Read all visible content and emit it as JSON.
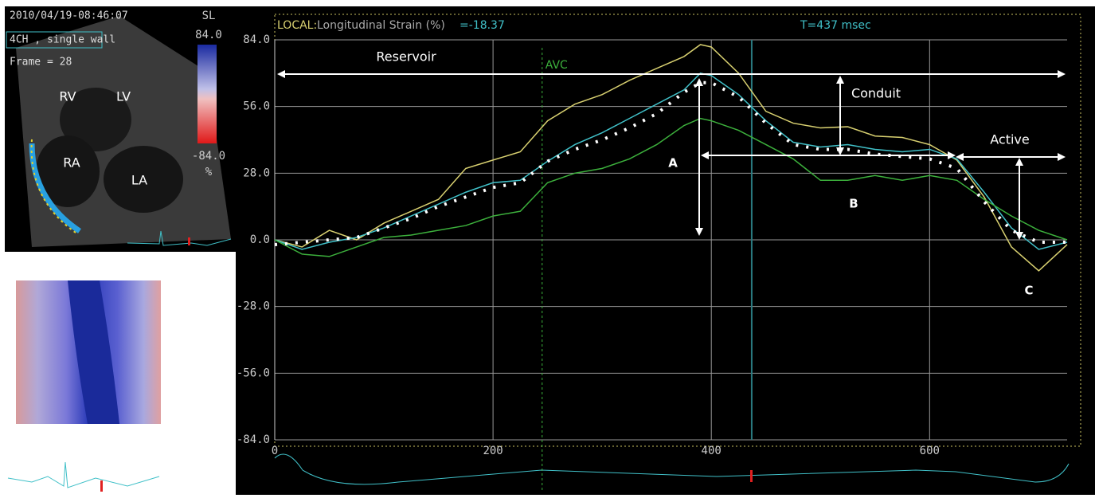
{
  "chart_data": {
    "type": "line",
    "header": {
      "local": "LOCAL:",
      "measure": "Longitudinal Strain (%)",
      "value": "=-18.37"
    },
    "cursor": {
      "label": "T=437 msec",
      "x": 437
    },
    "avc": {
      "label": "AVC",
      "x": 245
    },
    "x": [
      0,
      25,
      50,
      75,
      100,
      125,
      150,
      175,
      200,
      225,
      250,
      275,
      300,
      325,
      350,
      375,
      390,
      400,
      425,
      450,
      475,
      500,
      525,
      550,
      575,
      600,
      625,
      650,
      675,
      700,
      726
    ],
    "series": [
      {
        "color": "#d8d070",
        "values": [
          0,
          -3,
          4,
          0,
          7,
          12,
          17,
          30,
          33.5,
          37,
          50,
          57,
          61,
          67,
          72,
          77,
          82,
          81,
          70,
          54,
          49,
          47,
          47.5,
          43.6,
          43,
          40,
          33.5,
          18,
          -3,
          -13,
          -2
        ]
      },
      {
        "color": "#40c0c8",
        "values": [
          0,
          -4,
          -1,
          1,
          5,
          10,
          15,
          20,
          24,
          25,
          33,
          40,
          45,
          51,
          57,
          63,
          70,
          69,
          61,
          50,
          41,
          39,
          40,
          38,
          37,
          38,
          34,
          20,
          5,
          -4,
          -1
        ]
      },
      {
        "color": "#3cb03c",
        "values": [
          0,
          -6,
          -7,
          -3,
          1,
          2,
          4,
          6,
          10,
          12,
          24,
          28,
          30,
          34,
          40,
          48,
          51,
          50,
          46,
          40,
          34,
          25,
          25,
          27,
          25,
          27,
          25,
          17,
          10,
          4,
          0
        ]
      },
      {
        "color": "#ffffff",
        "dotted": true,
        "values": [
          -2,
          -1,
          0,
          1,
          5,
          9,
          14,
          18,
          22,
          24,
          33,
          38,
          42,
          47,
          53,
          62,
          66,
          66,
          60,
          49,
          40,
          38,
          38,
          36,
          35,
          34,
          30,
          16,
          4,
          -1,
          -1
        ]
      }
    ],
    "xlim": [
      0,
      726
    ],
    "ylim": [
      -84,
      84
    ],
    "xticks": [
      0,
      200,
      400,
      600
    ],
    "yticks": [
      {
        "value": 84,
        "label": "84.0"
      },
      {
        "value": 56,
        "label": "56.0"
      },
      {
        "value": 28,
        "label": "28.0"
      },
      {
        "value": 0,
        "label": "0.0"
      },
      {
        "value": -28,
        "label": "-28.0"
      },
      {
        "value": -56,
        "label": "-56.0"
      },
      {
        "value": -84,
        "label": "-84.0"
      }
    ],
    "grid": true,
    "annotations": [
      "Reservoir",
      "Conduit",
      "Active",
      "A",
      "B",
      "C"
    ]
  },
  "echo": {
    "timestamp": "2010/04/19-08:46:07",
    "view": "4CH , single wall",
    "frame": "Frame = 28",
    "scale_label": "SL",
    "scale_max": "84.0",
    "scale_min": "-84.0",
    "scale_unit": "%",
    "chambers": [
      "RV",
      "LV",
      "RA",
      "LA"
    ]
  }
}
